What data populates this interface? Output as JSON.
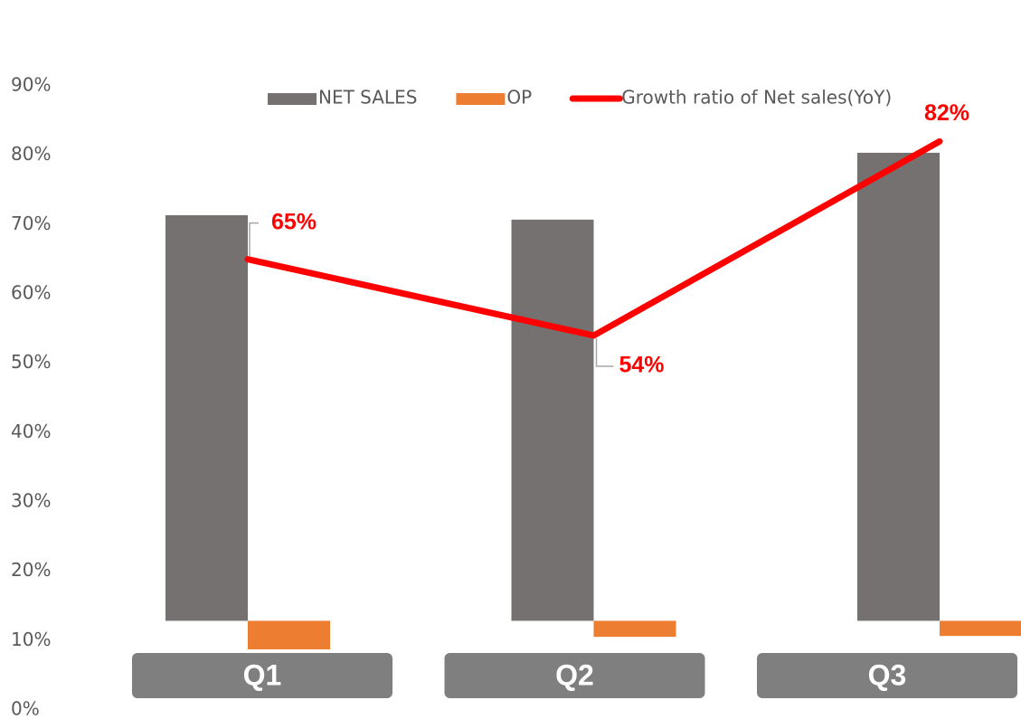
{
  "chart_data": {
    "type": "bar",
    "categories": [
      "Q1",
      "Q2",
      "Q3"
    ],
    "series": [
      {
        "name": "NET SALES",
        "type": "bar",
        "color": "#767171",
        "axis": "y2",
        "values": [
          91,
          90,
          105
        ]
      },
      {
        "name": "OP",
        "type": "bar",
        "color": "#ED7D31",
        "axis": "y2",
        "values": [
          -6.4,
          -3.6,
          -3.4
        ]
      },
      {
        "name": "Growth ratio of Net sales(YoY)",
        "type": "line",
        "color": "#FF0000",
        "values": [
          65,
          54,
          82
        ],
        "value_labels": [
          "65%",
          "54%",
          "82%"
        ]
      }
    ],
    "ylim": [
      0,
      90
    ],
    "yticks": [
      {
        "value": 0,
        "label": "0%"
      },
      {
        "value": 10,
        "label": "10%"
      },
      {
        "value": 20,
        "label": "20%"
      },
      {
        "value": 30,
        "label": "30%"
      },
      {
        "value": 40,
        "label": "40%"
      },
      {
        "value": 50,
        "label": "50%"
      },
      {
        "value": 60,
        "label": "60%"
      },
      {
        "value": 70,
        "label": "70%"
      },
      {
        "value": 80,
        "label": "80%"
      },
      {
        "value": 90,
        "label": "90%"
      }
    ],
    "y2lim": [
      -20,
      120
    ],
    "grid": false,
    "legend": "top"
  }
}
